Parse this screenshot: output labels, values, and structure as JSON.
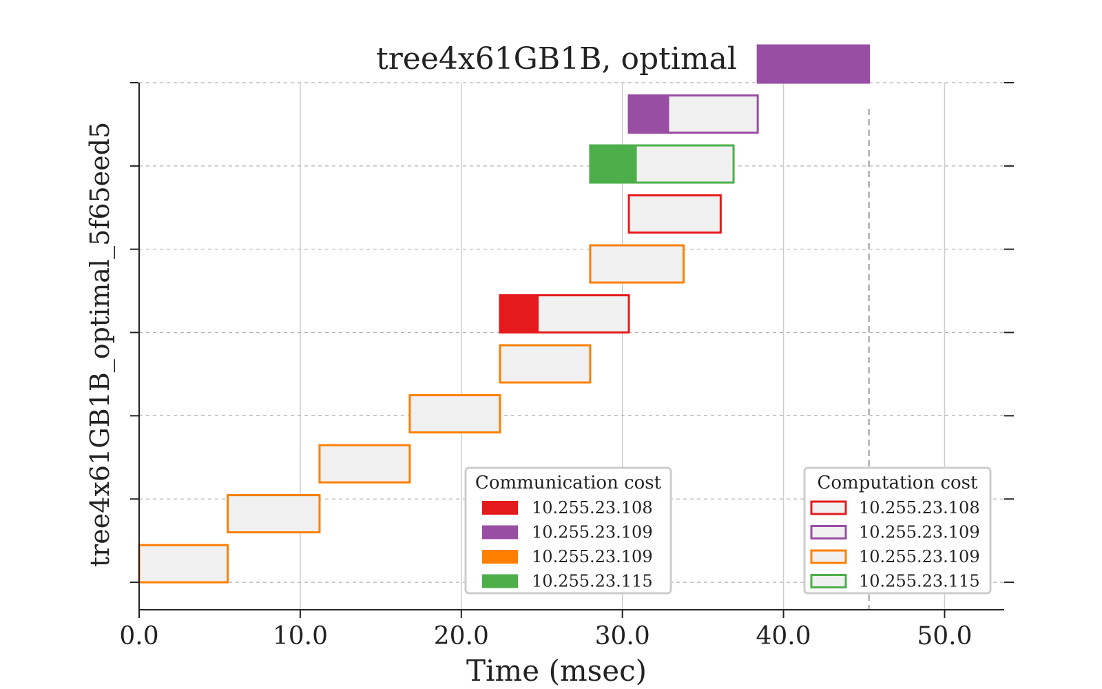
{
  "chart_data": {
    "type": "gantt",
    "title": "tree4x61GB1B, optimal",
    "xlabel": "Time (msec)",
    "ylabel": "tree4x61GB1B_optimal_5f65eed5",
    "xlim": [
      0,
      53.7
    ],
    "xticks": [
      "0.0",
      "10.0",
      "20.0",
      "30.0",
      "40.0",
      "50.0"
    ],
    "xtick_values": [
      0,
      10,
      20,
      30,
      40,
      50
    ],
    "ylim": [
      -0.33,
      6.0
    ],
    "ytick_values": [
      0,
      1,
      2,
      3,
      4,
      5,
      6
    ],
    "makespan": 45.3,
    "grid": {
      "x": "solid-light",
      "y": "dashed"
    },
    "colors": {
      "10.255.23.108": "#e41a1c",
      "10.255.23.109": "#984ea3",
      "10.255.23.109 (orange)": "#ff7f00",
      "10.255.23.115": "#4daf4a",
      "comp_fill": "#f0f0f0",
      "makespan_line": "#bbbbbb"
    },
    "tasks": [
      {
        "row": 0.0,
        "comm_start": 0.0,
        "comm_end": 0.0,
        "comp_end": 5.5,
        "color": "#ff7f00"
      },
      {
        "row": 0.6,
        "comm_start": 5.5,
        "comm_end": 5.5,
        "comp_end": 11.2,
        "color": "#ff7f00"
      },
      {
        "row": 1.2,
        "comm_start": 11.2,
        "comm_end": 11.2,
        "comp_end": 16.8,
        "color": "#ff7f00"
      },
      {
        "row": 1.8,
        "comm_start": 16.8,
        "comm_end": 16.8,
        "comp_end": 22.4,
        "color": "#ff7f00"
      },
      {
        "row": 2.4,
        "comm_start": 22.4,
        "comm_end": 22.4,
        "comp_end": 28.0,
        "color": "#ff7f00"
      },
      {
        "row": 3.0,
        "comm_start": 22.4,
        "comm_end": 24.8,
        "comp_end": 30.4,
        "color": "#e41a1c"
      },
      {
        "row": 3.6,
        "comm_start": 28.0,
        "comm_end": 28.0,
        "comp_end": 33.8,
        "color": "#ff7f00"
      },
      {
        "row": 4.2,
        "comm_start": 30.4,
        "comm_end": 30.4,
        "comp_end": 36.1,
        "color": "#e41a1c"
      },
      {
        "row": 4.8,
        "comm_start": 28.0,
        "comm_end": 30.9,
        "comp_end": 36.9,
        "color": "#4daf4a"
      },
      {
        "row": 5.4,
        "comm_start": 30.4,
        "comm_end": 32.9,
        "comp_end": 38.4,
        "color": "#984ea3"
      },
      {
        "row": 6.0,
        "comm_start": 38.4,
        "comm_end": 45.3,
        "comp_end": 45.3,
        "color": "#984ea3"
      }
    ],
    "legend_comm": {
      "title": "Communication cost",
      "placement": "lower-center",
      "entries": [
        {
          "label": "10.255.23.108",
          "color": "#e41a1c"
        },
        {
          "label": "10.255.23.109",
          "color": "#984ea3"
        },
        {
          "label": "10.255.23.109",
          "color": "#ff7f00"
        },
        {
          "label": "10.255.23.115",
          "color": "#4daf4a"
        }
      ]
    },
    "legend_comp": {
      "title": "Computation cost",
      "placement": "lower-right",
      "entries": [
        {
          "label": "10.255.23.108",
          "color": "#e41a1c"
        },
        {
          "label": "10.255.23.109",
          "color": "#984ea3"
        },
        {
          "label": "10.255.23.109",
          "color": "#ff7f00"
        },
        {
          "label": "10.255.23.115",
          "color": "#4daf4a"
        }
      ]
    }
  }
}
